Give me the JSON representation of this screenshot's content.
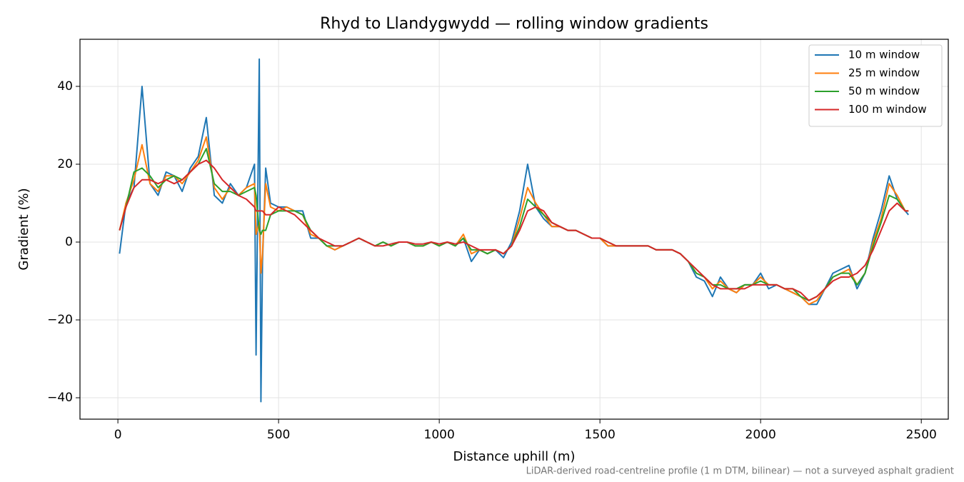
{
  "chart_data": {
    "type": "line",
    "title": "Rhyd to Llandygwydd — rolling window gradients",
    "x_label": "Distance uphill (m)",
    "y_label": "Gradient (%)",
    "annotation": "LiDAR-derived road-centreline profile (1 m DTM, bilinear) — not a surveyed asphalt gradient",
    "xlim": [
      -118,
      2584
    ],
    "ylim": [
      -45.5,
      52.1
    ],
    "xticks": [
      0,
      500,
      1000,
      1500,
      2000,
      2500
    ],
    "yticks": [
      {
        "value": -40,
        "label": "−40"
      },
      {
        "value": -20,
        "label": "−20"
      },
      0,
      20,
      40
    ],
    "grid": true,
    "legend": "upper right",
    "x": [
      5,
      25,
      50,
      75,
      100,
      125,
      150,
      175,
      200,
      225,
      250,
      275,
      300,
      325,
      350,
      375,
      400,
      425,
      430,
      440,
      445,
      450,
      460,
      475,
      500,
      525,
      550,
      575,
      600,
      625,
      650,
      675,
      700,
      725,
      750,
      775,
      800,
      825,
      850,
      875,
      900,
      925,
      950,
      975,
      1000,
      1025,
      1050,
      1075,
      1100,
      1125,
      1150,
      1175,
      1200,
      1225,
      1250,
      1275,
      1300,
      1325,
      1350,
      1375,
      1400,
      1425,
      1450,
      1475,
      1500,
      1525,
      1550,
      1575,
      1600,
      1625,
      1650,
      1675,
      1700,
      1725,
      1750,
      1775,
      1800,
      1825,
      1850,
      1875,
      1900,
      1925,
      1950,
      1975,
      2000,
      2025,
      2050,
      2075,
      2100,
      2125,
      2150,
      2175,
      2200,
      2225,
      2250,
      2275,
      2300,
      2325,
      2350,
      2375,
      2400,
      2425,
      2450,
      2460
    ],
    "series": [
      {
        "name": "10 m window",
        "color": "#1f77b4",
        "values": [
          -3,
          10,
          14,
          40,
          15,
          12,
          18,
          17,
          13,
          19,
          22,
          32,
          12,
          10,
          15,
          12,
          14,
          20,
          -29,
          47,
          -41,
          -5,
          19,
          10,
          9,
          9,
          8,
          8,
          1,
          1,
          -1,
          -2,
          -1,
          0,
          1,
          0,
          -1,
          0,
          -1,
          0,
          0,
          -1,
          -1,
          0,
          -1,
          0,
          -1,
          1,
          -5,
          -2,
          -3,
          -2,
          -4,
          0,
          8,
          20,
          9,
          6,
          4,
          4,
          3,
          3,
          2,
          1,
          1,
          -1,
          -1,
          -1,
          -1,
          -1,
          -1,
          -2,
          -2,
          -2,
          -3,
          -5,
          -9,
          -10,
          -14,
          -9,
          -12,
          -13,
          -11,
          -11,
          -8,
          -12,
          -11,
          -12,
          -13,
          -14,
          -16,
          -16,
          -12,
          -8,
          -7,
          -6,
          -12,
          -8,
          1,
          8,
          17,
          11,
          8,
          7
        ]
      },
      {
        "name": "25 m window",
        "color": "#ff7f0e",
        "values": [
          3,
          10,
          16,
          25,
          15,
          13,
          17,
          17,
          15,
          18,
          21,
          27,
          14,
          11,
          14,
          12,
          14,
          15,
          2,
          5,
          -8,
          -3,
          15,
          9,
          8,
          9,
          8,
          7,
          2,
          1,
          -1,
          -2,
          -1,
          0,
          1,
          0,
          -1,
          0,
          -1,
          0,
          0,
          -1,
          -1,
          0,
          -1,
          0,
          -1,
          2,
          -3,
          -2,
          -3,
          -2,
          -3,
          -1,
          6,
          14,
          10,
          7,
          4,
          4,
          3,
          3,
          2,
          1,
          1,
          -1,
          -1,
          -1,
          -1,
          -1,
          -1,
          -2,
          -2,
          -2,
          -3,
          -5,
          -8,
          -9,
          -12,
          -10,
          -12,
          -13,
          -11,
          -11,
          -9,
          -11,
          -11,
          -12,
          -13,
          -14,
          -16,
          -15,
          -12,
          -9,
          -8,
          -7,
          -11,
          -8,
          0,
          6,
          15,
          12,
          8,
          8
        ]
      },
      {
        "name": "50 m window",
        "color": "#2ca02c",
        "values": [
          3,
          9,
          18,
          19,
          17,
          14,
          16,
          17,
          16,
          18,
          20,
          24,
          15,
          13,
          13,
          12,
          13,
          14,
          12,
          3,
          2,
          3,
          3,
          7,
          8,
          8,
          8,
          7,
          3,
          1,
          -1,
          -1,
          -1,
          0,
          1,
          0,
          -1,
          0,
          -1,
          0,
          0,
          -1,
          -1,
          0,
          -1,
          0,
          -1,
          1,
          -2,
          -2,
          -3,
          -2,
          -3,
          -1,
          4,
          11,
          9,
          7,
          5,
          4,
          3,
          3,
          2,
          1,
          1,
          0,
          -1,
          -1,
          -1,
          -1,
          -1,
          -2,
          -2,
          -2,
          -3,
          -5,
          -8,
          -9,
          -11,
          -11,
          -12,
          -12,
          -11,
          -11,
          -10,
          -11,
          -11,
          -12,
          -12,
          -14,
          -15,
          -14,
          -12,
          -9,
          -8,
          -8,
          -11,
          -8,
          -1,
          5,
          12,
          11,
          8,
          8
        ]
      },
      {
        "name": "100 m window",
        "color": "#d62728",
        "values": [
          3,
          9,
          14,
          16,
          16,
          15,
          16,
          15,
          16,
          18,
          20,
          21,
          19,
          16,
          14,
          12,
          11,
          9,
          8,
          8,
          8,
          8,
          7,
          7,
          9,
          8,
          7,
          5,
          3,
          1,
          0,
          -1,
          -1,
          0,
          1,
          0,
          -1,
          -1,
          -0.5,
          0,
          0,
          -0.5,
          -0.5,
          0,
          -0.5,
          0,
          -0.5,
          0,
          -1,
          -2,
          -2,
          -2,
          -3,
          -1,
          3,
          8,
          9,
          8,
          5,
          4,
          3,
          3,
          2,
          1,
          1,
          0,
          -1,
          -1,
          -1,
          -1,
          -1,
          -2,
          -2,
          -2,
          -3,
          -5,
          -7,
          -9,
          -11,
          -12,
          -12,
          -12,
          -12,
          -11,
          -11,
          -11,
          -11,
          -12,
          -12,
          -13,
          -15,
          -14,
          -12,
          -10,
          -9,
          -9,
          -8,
          -6,
          -2,
          3,
          8,
          10,
          8,
          8
        ]
      }
    ]
  }
}
